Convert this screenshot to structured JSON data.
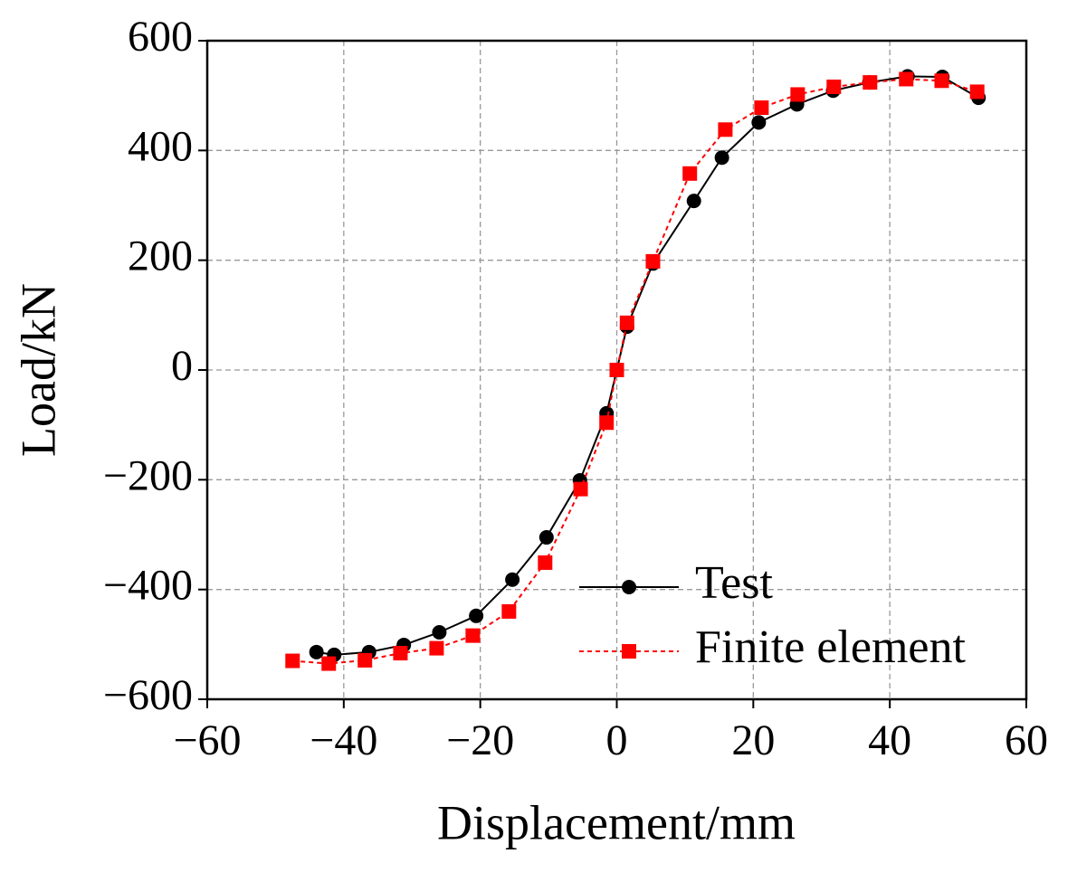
{
  "chart_data": {
    "type": "line",
    "xlabel": "Displacement/mm",
    "ylabel": "Load/kN",
    "xlim": [
      -60,
      60
    ],
    "xticks": [
      {
        "value": -60,
        "label": "−60"
      },
      {
        "value": -40,
        "label": "−40"
      },
      {
        "value": -20,
        "label": "−20"
      },
      0,
      20,
      40,
      60
    ],
    "ylim": [
      -600,
      600
    ],
    "yticks": [
      {
        "value": -600,
        "label": "−600"
      },
      {
        "value": -400,
        "label": "−400"
      },
      {
        "value": -200,
        "label": "−200"
      },
      0,
      200,
      400,
      600
    ],
    "grid": true,
    "legend": "lower right",
    "series": [
      {
        "name": "Test",
        "color": "#000000",
        "marker": "circle",
        "linestyle": "solid",
        "x": [
          -44.0,
          -41.4,
          -36.3,
          -31.2,
          -26.0,
          -20.6,
          -15.3,
          -10.3,
          -5.4,
          -1.5,
          0,
          1.5,
          5.3,
          11.3,
          15.4,
          20.8,
          26.4,
          31.7,
          37.0,
          42.6,
          47.7,
          53.0
        ],
        "values": [
          -514,
          -519,
          -514,
          -501,
          -478,
          -448,
          -382,
          -305,
          -201,
          -79,
          0,
          79,
          194,
          308,
          387,
          451,
          484,
          509,
          524,
          535,
          534,
          496
        ]
      },
      {
        "name": "Finite element",
        "color": "#ff0000",
        "marker": "square",
        "linestyle": "dashed",
        "x": [
          -47.5,
          -42.2,
          -36.9,
          -31.7,
          -26.4,
          -21.1,
          -15.8,
          -10.5,
          -5.3,
          -1.5,
          0,
          1.5,
          5.3,
          10.7,
          15.9,
          21.2,
          26.5,
          31.8,
          37.1,
          42.4,
          47.6,
          52.8
        ],
        "values": [
          -530,
          -535,
          -529,
          -516,
          -507,
          -484,
          -440,
          -351,
          -217,
          -96,
          0,
          86,
          198,
          358,
          438,
          478,
          502,
          516,
          524,
          530,
          527,
          507
        ]
      }
    ]
  }
}
